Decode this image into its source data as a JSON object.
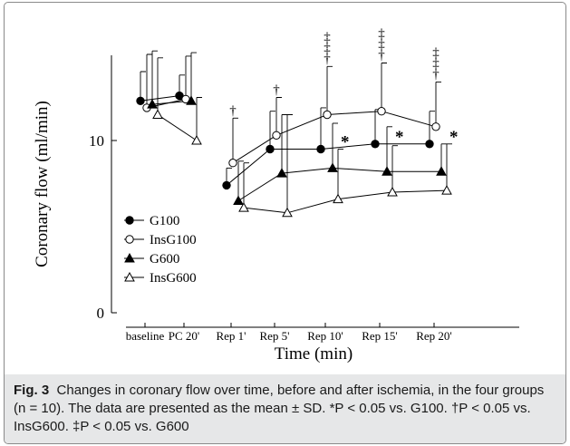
{
  "chart_data": {
    "type": "line",
    "ylabel": "Coronary flow (ml/min)",
    "xlabel": "Time (min)",
    "categories": [
      "baseline",
      "PC 20'",
      "Rep 1'",
      "Rep 5'",
      "Rep 10'",
      "Rep 15'",
      "Rep 20'"
    ],
    "yticks": [
      "0",
      "10"
    ],
    "ylim": [
      0,
      15
    ],
    "segments": [
      [
        0,
        1
      ],
      [
        2,
        3,
        4,
        5,
        6
      ]
    ],
    "series": [
      {
        "name": "G100",
        "marker": "filled-circle",
        "values": [
          12.3,
          12.6,
          7.4,
          9.5,
          9.5,
          9.8,
          9.8
        ],
        "sd": [
          1.7,
          1.2,
          1.0,
          2.2,
          2.4,
          2.0,
          1.9
        ]
      },
      {
        "name": "InsG100",
        "marker": "open-circle",
        "values": [
          11.9,
          12.4,
          8.7,
          10.3,
          11.5,
          11.7,
          10.8
        ],
        "sd": [
          3.1,
          2.5,
          2.6,
          2.2,
          2.8,
          2.8,
          2.6
        ]
      },
      {
        "name": "G600",
        "marker": "filled-triangle",
        "values": [
          12.1,
          12.3,
          6.5,
          8.1,
          8.4,
          8.2,
          8.2
        ],
        "sd": [
          3.1,
          2.8,
          2.3,
          3.4,
          2.6,
          2.6,
          1.6
        ]
      },
      {
        "name": "InsG600",
        "marker": "open-triangle",
        "values": [
          11.5,
          10.0,
          6.1,
          5.8,
          6.6,
          7.0,
          7.1
        ],
        "sd": [
          3.3,
          2.5,
          2.6,
          5.7,
          2.9,
          2.7,
          2.7
        ]
      }
    ],
    "annotations": [
      {
        "category": 2,
        "text": "†"
      },
      {
        "category": 3,
        "text": "†"
      },
      {
        "category": 4,
        "text": "‡ ‡ †"
      },
      {
        "category": 5,
        "text": "‡ ‡ †"
      },
      {
        "category": 6,
        "text": "‡ ‡ †"
      },
      {
        "category": 4,
        "text": "*"
      },
      {
        "category": 5,
        "text": "*"
      },
      {
        "category": 6,
        "text": "*"
      }
    ]
  },
  "caption": {
    "label": "Fig. 3",
    "text": "Changes in coronary flow over time, before and after ischemia, in the four groups (n = 10). The data are presented as the mean ± SD. *P < 0.05 vs. G100. †P < 0.05 vs. InsG600. ‡P < 0.05 vs. G600"
  }
}
